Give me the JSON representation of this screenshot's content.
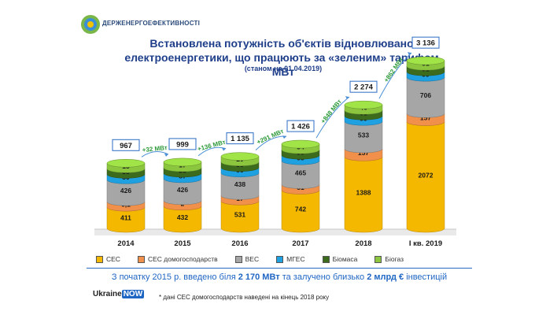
{
  "header": {
    "logo_text": "ДЕРЖЕНЕРГОЕФЕКТИВНОСТІ",
    "title_line1": "Встановлена потужність об'єктів відновлюваної",
    "title_line2": "електроенергетики, що працюють за «зеленим» тарифом, МВт",
    "subtitle": "(станом на 01.04.2019)"
  },
  "legend": [
    {
      "label": "СЕС",
      "color": "#f5b800"
    },
    {
      "label": "СЕС домогосподарств",
      "color": "#f0904a"
    },
    {
      "label": "ВЕС",
      "color": "#a6a6a6"
    },
    {
      "label": "МГЕС",
      "color": "#1fa0e0"
    },
    {
      "label": "Біомаса",
      "color": "#3d6b1e"
    },
    {
      "label": "Біогаз",
      "color": "#8cc63f"
    }
  ],
  "footer": {
    "pre": "З початку 2015 р. введено  біля ",
    "b1": "2 170 МВт",
    "mid": " та залучено близько  ",
    "b2": "2 млрд € ",
    "post": "інвестицій",
    "note": "*  дані СЕС домогосподарств  наведені на кінець 2018 року",
    "brand_a": "Ukraine",
    "brand_b": "NOW"
  },
  "chart_data": {
    "type": "bar",
    "stacked": true,
    "unit": "МВт",
    "categories": [
      "2014",
      "2015",
      "2016",
      "2017",
      "2018",
      "І кв. 2019"
    ],
    "series": [
      {
        "name": "СЕС",
        "color": "#f5b800",
        "values": [
          411,
          432,
          531,
          742,
          1388,
          2072
        ]
      },
      {
        "name": "СЕС домогосподарств",
        "color": "#f0904a",
        "values": [
          0.1,
          2,
          17,
          51,
          157,
          157
        ]
      },
      {
        "name": "ВЕС",
        "color": "#a6a6a6",
        "values": [
          426,
          426,
          438,
          465,
          533,
          706
        ]
      },
      {
        "name": "МГЕС",
        "color": "#1fa0e0",
        "values": [
          80,
          87,
          90,
          95,
          99,
          99
        ]
      },
      {
        "name": "Біомаса",
        "color": "#3d6b1e",
        "values": [
          35,
          35,
          39,
          39,
          51,
          51
        ]
      },
      {
        "name": "Біогаз",
        "color": "#8cc63f",
        "values": [
          15,
          17,
          20,
          34,
          46,
          51
        ]
      }
    ],
    "value_labels": [
      [
        "411",
        "432",
        "531",
        "742",
        "1388",
        "2072"
      ],
      [
        "0,1",
        "2",
        "17",
        "51",
        "157",
        "157"
      ],
      [
        "426",
        "426",
        "438",
        "465",
        "533",
        "706"
      ],
      [
        "80",
        "87",
        "90",
        "95",
        "99",
        "99"
      ],
      [
        "35",
        "35",
        "39",
        "39",
        "51",
        "51"
      ],
      [
        "15",
        "17",
        "20",
        "34",
        "46",
        "51"
      ]
    ],
    "totals": [
      "967",
      "999",
      "1 135",
      "1 426",
      "2 274",
      "3 136"
    ],
    "increments": [
      "+32 МВт",
      "+136 МВт",
      "+291 МВт",
      "+848 МВт",
      "+862 МВт"
    ],
    "ylim": [
      0,
      3136
    ]
  }
}
